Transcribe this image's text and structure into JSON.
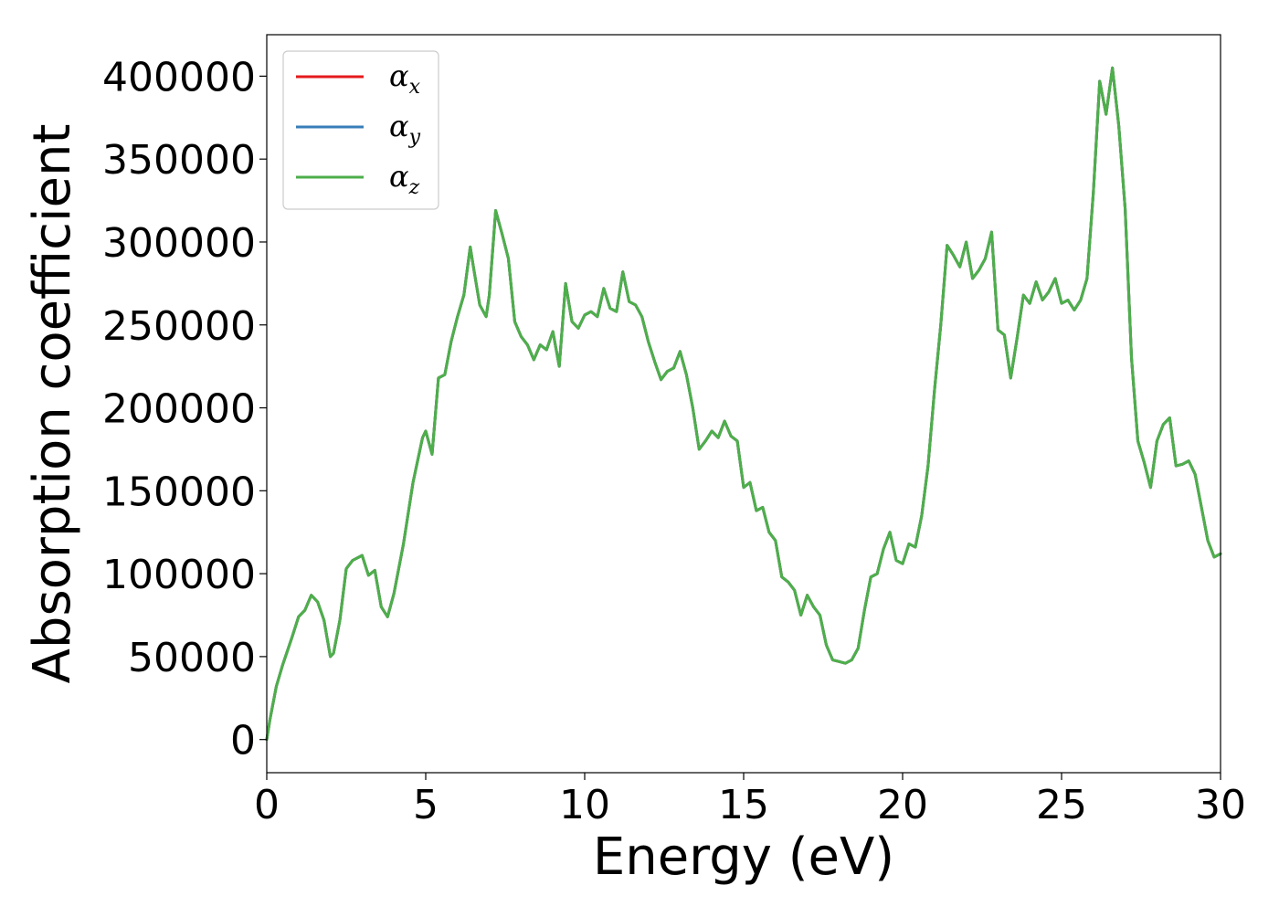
{
  "chart_data": {
    "type": "line",
    "title": "",
    "xlabel": "Energy (eV)",
    "ylabel": "Absorption coefficient",
    "xlim": [
      0,
      30
    ],
    "ylim": [
      -20000,
      425000
    ],
    "xticks": [
      0,
      5,
      10,
      15,
      20,
      25,
      30
    ],
    "xtick_labels": [
      "0",
      "5",
      "10",
      "15",
      "20",
      "25",
      "30"
    ],
    "yticks": [
      0,
      50000,
      100000,
      150000,
      200000,
      250000,
      300000,
      350000,
      400000
    ],
    "ytick_labels": [
      "0",
      "50000",
      "100000",
      "150000",
      "200000",
      "250000",
      "300000",
      "350000",
      "400000"
    ],
    "grid": false,
    "legend_position": "top-left",
    "series": [
      {
        "name": "αx",
        "symbol": "α",
        "subscript": "x",
        "color": "#e41a1c",
        "x": [
          0,
          0.1,
          0.3,
          0.5,
          0.8,
          1.0,
          1.2,
          1.4,
          1.6,
          1.8,
          2.0,
          2.1,
          2.3,
          2.5,
          2.7,
          3.0,
          3.2,
          3.4,
          3.6,
          3.8,
          4.0,
          4.3,
          4.6,
          4.9,
          5.0,
          5.2,
          5.4,
          5.6,
          5.8,
          6.0,
          6.2,
          6.4,
          6.5,
          6.7,
          6.9,
          7.0,
          7.2,
          7.4,
          7.6,
          7.8,
          8.0,
          8.2,
          8.4,
          8.6,
          8.8,
          9.0,
          9.2,
          9.4,
          9.6,
          9.8,
          10.0,
          10.2,
          10.4,
          10.6,
          10.8,
          11.0,
          11.2,
          11.4,
          11.6,
          11.8,
          12.0,
          12.2,
          12.4,
          12.6,
          12.8,
          13.0,
          13.2,
          13.4,
          13.6,
          13.8,
          14.0,
          14.2,
          14.4,
          14.6,
          14.8,
          15.0,
          15.2,
          15.4,
          15.6,
          15.8,
          16.0,
          16.2,
          16.4,
          16.6,
          16.8,
          17.0,
          17.2,
          17.4,
          17.6,
          17.8,
          18.0,
          18.2,
          18.4,
          18.6,
          18.8,
          19.0,
          19.2,
          19.4,
          19.6,
          19.8,
          20.0,
          20.2,
          20.4,
          20.6,
          20.8,
          21.0,
          21.2,
          21.4,
          21.6,
          21.8,
          22.0,
          22.2,
          22.4,
          22.6,
          22.8,
          23.0,
          23.2,
          23.4,
          23.6,
          23.8,
          24.0,
          24.2,
          24.4,
          24.6,
          24.8,
          25.0,
          25.2,
          25.4,
          25.6,
          25.8,
          26.0,
          26.2,
          26.4,
          26.6,
          26.8,
          27.0,
          27.2,
          27.4,
          27.6,
          27.8,
          28.0,
          28.2,
          28.4,
          28.6,
          28.8,
          29.0,
          29.2,
          29.4,
          29.6,
          29.8,
          30.0
        ],
        "y": [
          0,
          12000,
          32000,
          45000,
          62000,
          74000,
          78000,
          87000,
          83000,
          72000,
          50000,
          52000,
          72000,
          103000,
          108000,
          111000,
          99000,
          102000,
          80000,
          74000,
          88000,
          118000,
          155000,
          182000,
          186000,
          172000,
          218000,
          220000,
          240000,
          255000,
          268000,
          297000,
          285000,
          262000,
          255000,
          268000,
          319000,
          305000,
          290000,
          252000,
          243000,
          238000,
          229000,
          238000,
          235000,
          246000,
          225000,
          275000,
          252000,
          248000,
          256000,
          258000,
          255000,
          272000,
          260000,
          258000,
          282000,
          264000,
          262000,
          255000,
          240000,
          228000,
          217000,
          222000,
          224000,
          234000,
          220000,
          200000,
          175000,
          180000,
          186000,
          182000,
          192000,
          183000,
          180000,
          152000,
          155000,
          138000,
          140000,
          125000,
          120000,
          98000,
          95000,
          90000,
          75000,
          87000,
          80000,
          75000,
          57000,
          48000,
          47000,
          46000,
          48000,
          55000,
          78000,
          98000,
          100000,
          115000,
          125000,
          108000,
          106000,
          118000,
          116000,
          135000,
          165000,
          210000,
          250000,
          298000,
          292000,
          285000,
          300000,
          278000,
          283000,
          290000,
          306000,
          247000,
          244000,
          218000,
          242000,
          268000,
          263000,
          276000,
          265000,
          270000,
          278000,
          263000,
          265000,
          259000,
          265000,
          278000,
          330000,
          397000,
          377000,
          405000,
          370000,
          320000,
          230000,
          180000,
          167000,
          152000,
          180000,
          190000,
          194000,
          165000,
          166000,
          168000,
          160000,
          140000,
          120000,
          110000,
          112000
        ]
      },
      {
        "name": "αy",
        "symbol": "α",
        "subscript": "y",
        "color": "#377eb8",
        "x": [
          0,
          0.1,
          0.3,
          0.5,
          0.8,
          1.0,
          1.2,
          1.4,
          1.6,
          1.8,
          2.0,
          2.1,
          2.3,
          2.5,
          2.7,
          3.0,
          3.2,
          3.4,
          3.6,
          3.8,
          4.0,
          4.3,
          4.6,
          4.9,
          5.0,
          5.2,
          5.4,
          5.6,
          5.8,
          6.0,
          6.2,
          6.4,
          6.5,
          6.7,
          6.9,
          7.0,
          7.2,
          7.4,
          7.6,
          7.8,
          8.0,
          8.2,
          8.4,
          8.6,
          8.8,
          9.0,
          9.2,
          9.4,
          9.6,
          9.8,
          10.0,
          10.2,
          10.4,
          10.6,
          10.8,
          11.0,
          11.2,
          11.4,
          11.6,
          11.8,
          12.0,
          12.2,
          12.4,
          12.6,
          12.8,
          13.0,
          13.2,
          13.4,
          13.6,
          13.8,
          14.0,
          14.2,
          14.4,
          14.6,
          14.8,
          15.0,
          15.2,
          15.4,
          15.6,
          15.8,
          16.0,
          16.2,
          16.4,
          16.6,
          16.8,
          17.0,
          17.2,
          17.4,
          17.6,
          17.8,
          18.0,
          18.2,
          18.4,
          18.6,
          18.8,
          19.0,
          19.2,
          19.4,
          19.6,
          19.8,
          20.0,
          20.2,
          20.4,
          20.6,
          20.8,
          21.0,
          21.2,
          21.4,
          21.6,
          21.8,
          22.0,
          22.2,
          22.4,
          22.6,
          22.8,
          23.0,
          23.2,
          23.4,
          23.6,
          23.8,
          24.0,
          24.2,
          24.4,
          24.6,
          24.8,
          25.0,
          25.2,
          25.4,
          25.6,
          25.8,
          26.0,
          26.2,
          26.4,
          26.6,
          26.8,
          27.0,
          27.2,
          27.4,
          27.6,
          27.8,
          28.0,
          28.2,
          28.4,
          28.6,
          28.8,
          29.0,
          29.2,
          29.4,
          29.6,
          29.8,
          30.0
        ],
        "y": [
          0,
          12000,
          32000,
          45000,
          62000,
          74000,
          78000,
          87000,
          83000,
          72000,
          50000,
          52000,
          72000,
          103000,
          108000,
          111000,
          99000,
          102000,
          80000,
          74000,
          88000,
          118000,
          155000,
          182000,
          186000,
          172000,
          218000,
          220000,
          240000,
          255000,
          268000,
          297000,
          285000,
          262000,
          255000,
          268000,
          319000,
          305000,
          290000,
          252000,
          243000,
          238000,
          229000,
          238000,
          235000,
          246000,
          225000,
          275000,
          252000,
          248000,
          256000,
          258000,
          255000,
          272000,
          260000,
          258000,
          282000,
          264000,
          262000,
          255000,
          240000,
          228000,
          217000,
          222000,
          224000,
          234000,
          220000,
          200000,
          175000,
          180000,
          186000,
          182000,
          192000,
          183000,
          180000,
          152000,
          155000,
          138000,
          140000,
          125000,
          120000,
          98000,
          95000,
          90000,
          75000,
          87000,
          80000,
          75000,
          57000,
          48000,
          47000,
          46000,
          48000,
          55000,
          78000,
          98000,
          100000,
          115000,
          125000,
          108000,
          106000,
          118000,
          116000,
          135000,
          165000,
          210000,
          250000,
          298000,
          292000,
          285000,
          300000,
          278000,
          283000,
          290000,
          306000,
          247000,
          244000,
          218000,
          242000,
          268000,
          263000,
          276000,
          265000,
          270000,
          278000,
          263000,
          265000,
          259000,
          265000,
          278000,
          330000,
          397000,
          377000,
          405000,
          370000,
          320000,
          230000,
          180000,
          167000,
          152000,
          180000,
          190000,
          194000,
          165000,
          166000,
          168000,
          160000,
          140000,
          120000,
          110000,
          112000
        ]
      },
      {
        "name": "αz",
        "symbol": "α",
        "subscript": "z",
        "color": "#4daf4a",
        "x": [
          0,
          0.1,
          0.3,
          0.5,
          0.8,
          1.0,
          1.2,
          1.4,
          1.6,
          1.8,
          2.0,
          2.1,
          2.3,
          2.5,
          2.7,
          3.0,
          3.2,
          3.4,
          3.6,
          3.8,
          4.0,
          4.3,
          4.6,
          4.9,
          5.0,
          5.2,
          5.4,
          5.6,
          5.8,
          6.0,
          6.2,
          6.4,
          6.5,
          6.7,
          6.9,
          7.0,
          7.2,
          7.4,
          7.6,
          7.8,
          8.0,
          8.2,
          8.4,
          8.6,
          8.8,
          9.0,
          9.2,
          9.4,
          9.6,
          9.8,
          10.0,
          10.2,
          10.4,
          10.6,
          10.8,
          11.0,
          11.2,
          11.4,
          11.6,
          11.8,
          12.0,
          12.2,
          12.4,
          12.6,
          12.8,
          13.0,
          13.2,
          13.4,
          13.6,
          13.8,
          14.0,
          14.2,
          14.4,
          14.6,
          14.8,
          15.0,
          15.2,
          15.4,
          15.6,
          15.8,
          16.0,
          16.2,
          16.4,
          16.6,
          16.8,
          17.0,
          17.2,
          17.4,
          17.6,
          17.8,
          18.0,
          18.2,
          18.4,
          18.6,
          18.8,
          19.0,
          19.2,
          19.4,
          19.6,
          19.8,
          20.0,
          20.2,
          20.4,
          20.6,
          20.8,
          21.0,
          21.2,
          21.4,
          21.6,
          21.8,
          22.0,
          22.2,
          22.4,
          22.6,
          22.8,
          23.0,
          23.2,
          23.4,
          23.6,
          23.8,
          24.0,
          24.2,
          24.4,
          24.6,
          24.8,
          25.0,
          25.2,
          25.4,
          25.6,
          25.8,
          26.0,
          26.2,
          26.4,
          26.6,
          26.8,
          27.0,
          27.2,
          27.4,
          27.6,
          27.8,
          28.0,
          28.2,
          28.4,
          28.6,
          28.8,
          29.0,
          29.2,
          29.4,
          29.6,
          29.8,
          30.0
        ],
        "y": [
          0,
          12000,
          32000,
          45000,
          62000,
          74000,
          78000,
          87000,
          83000,
          72000,
          50000,
          52000,
          72000,
          103000,
          108000,
          111000,
          99000,
          102000,
          80000,
          74000,
          88000,
          118000,
          155000,
          182000,
          186000,
          172000,
          218000,
          220000,
          240000,
          255000,
          268000,
          297000,
          285000,
          262000,
          255000,
          268000,
          319000,
          305000,
          290000,
          252000,
          243000,
          238000,
          229000,
          238000,
          235000,
          246000,
          225000,
          275000,
          252000,
          248000,
          256000,
          258000,
          255000,
          272000,
          260000,
          258000,
          282000,
          264000,
          262000,
          255000,
          240000,
          228000,
          217000,
          222000,
          224000,
          234000,
          220000,
          200000,
          175000,
          180000,
          186000,
          182000,
          192000,
          183000,
          180000,
          152000,
          155000,
          138000,
          140000,
          125000,
          120000,
          98000,
          95000,
          90000,
          75000,
          87000,
          80000,
          75000,
          57000,
          48000,
          47000,
          46000,
          48000,
          55000,
          78000,
          98000,
          100000,
          115000,
          125000,
          108000,
          106000,
          118000,
          116000,
          135000,
          165000,
          210000,
          250000,
          298000,
          292000,
          285000,
          300000,
          278000,
          283000,
          290000,
          306000,
          247000,
          244000,
          218000,
          242000,
          268000,
          263000,
          276000,
          265000,
          270000,
          278000,
          263000,
          265000,
          259000,
          265000,
          278000,
          330000,
          397000,
          377000,
          405000,
          370000,
          320000,
          230000,
          180000,
          167000,
          152000,
          180000,
          190000,
          194000,
          165000,
          166000,
          168000,
          160000,
          140000,
          120000,
          110000,
          112000
        ]
      }
    ]
  }
}
